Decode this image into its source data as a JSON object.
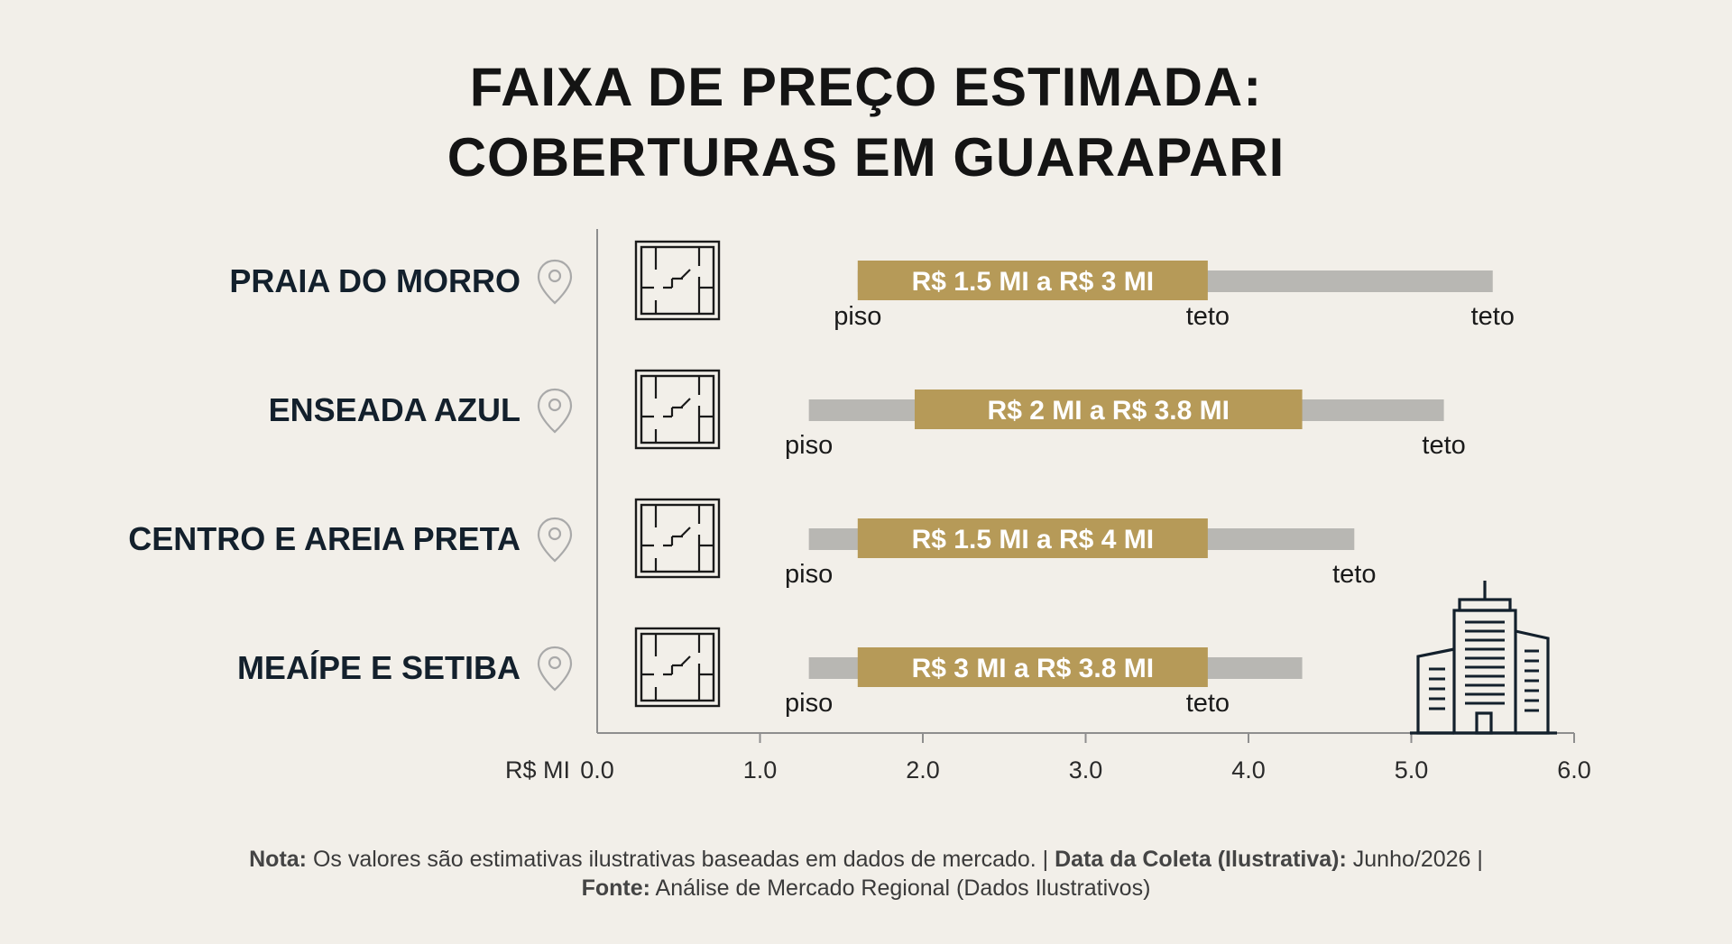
{
  "title": {
    "line1": "FAIXA DE PREÇO ESTIMADA:",
    "line2": "COBERTURAS EM GUARAPARI"
  },
  "colors": {
    "accent": "#b69a58",
    "track": "#b8b7b3",
    "axis": "#8e8e8e",
    "text": "#13202c"
  },
  "icons": {
    "location": "location-pin-icon",
    "floorplan": "floor-plan-icon",
    "building": "building-icon"
  },
  "chart_data": {
    "type": "bar",
    "orientation": "horizontal-range",
    "categories": [
      "PRAIA DO MORRO",
      "ENSEADA AZUL",
      "CENTRO E AREIA PRETA",
      "MEAÍPE E SETIBA"
    ],
    "series": [
      {
        "range_min": 1.6,
        "range_max": 5.5,
        "highlight_min": 1.6,
        "highlight_max": 3.75,
        "label": "R$ 1.5 MI a R$ 3 MI",
        "markers": [
          {
            "value": 1.6,
            "text": "piso"
          },
          {
            "value": 3.75,
            "text": "teto"
          },
          {
            "value": 5.5,
            "text": "teto"
          }
        ]
      },
      {
        "range_min": 1.3,
        "range_max": 5.2,
        "highlight_min": 1.95,
        "highlight_max": 4.33,
        "label": "R$ 2 MI a R$ 3.8 MI",
        "markers": [
          {
            "value": 1.3,
            "text": "piso"
          },
          {
            "value": 5.2,
            "text": "teto"
          }
        ]
      },
      {
        "range_min": 1.3,
        "range_max": 4.65,
        "highlight_min": 1.6,
        "highlight_max": 3.75,
        "label": "R$ 1.5 MI a R$ 4 MI",
        "markers": [
          {
            "value": 1.3,
            "text": "piso"
          },
          {
            "value": 4.65,
            "text": "teto"
          }
        ]
      },
      {
        "range_min": 1.3,
        "range_max": 4.33,
        "highlight_min": 1.6,
        "highlight_max": 3.75,
        "label": "R$ 3 MI a R$ 3.8 MI",
        "markers": [
          {
            "value": 1.3,
            "text": "piso"
          },
          {
            "value": 3.75,
            "text": "teto"
          }
        ]
      }
    ],
    "xunit": "R$ MI",
    "xlim": [
      0,
      6
    ],
    "xticks": [
      "0.0",
      "1.0",
      "2.0",
      "3.0",
      "4.0",
      "5.0",
      "6.0"
    ],
    "grid": false,
    "legend": "none"
  },
  "footnote": {
    "note_label": "Nota:",
    "note_text": " Os valores são estimativas ilustrativas baseadas em dados de mercado. | ",
    "date_label": "Data da Coleta (Ilustrativa):",
    "date_text": " Junho/2026 |",
    "source_label": "Fonte:",
    "source_text": " Análise de Mercado Regional (Dados Ilustrativos)"
  }
}
